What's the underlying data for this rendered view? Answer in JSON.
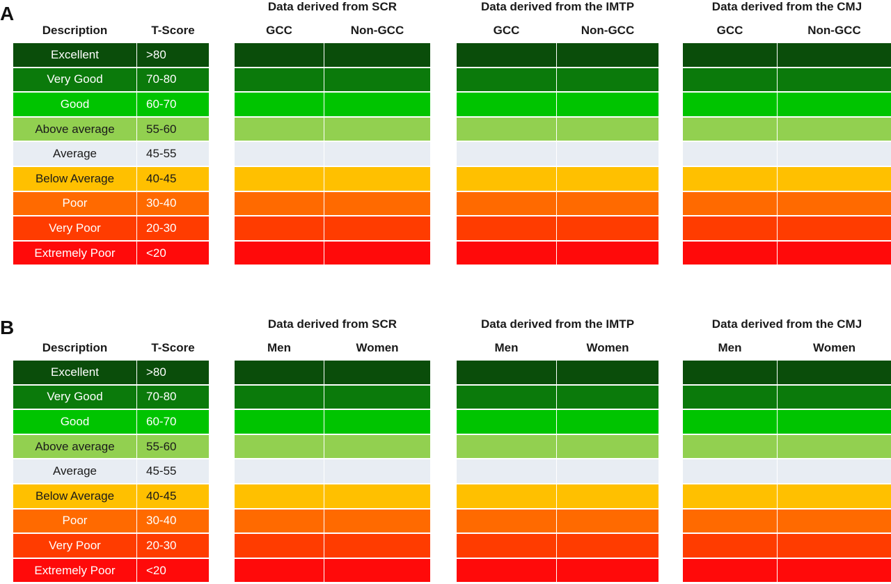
{
  "rating_levels": [
    {
      "description": "Excellent",
      "t_score": ">80",
      "color": "#0a4d0a",
      "text_color": "#ffffff"
    },
    {
      "description": "Very Good",
      "t_score": "70-80",
      "color": "#0b7a0b",
      "text_color": "#ffffff"
    },
    {
      "description": "Good",
      "t_score": "60-70",
      "color": "#00c400",
      "text_color": "#ffffff"
    },
    {
      "description": "Above average",
      "t_score": "55-60",
      "color": "#92d050",
      "text_color": "#1a1a1a"
    },
    {
      "description": "Average",
      "t_score": "45-55",
      "color": "#e8edf3",
      "text_color": "#1a1a1a"
    },
    {
      "description": "Below Average",
      "t_score": "40-45",
      "color": "#ffc000",
      "text_color": "#1a1a1a"
    },
    {
      "description": "Poor",
      "t_score": "30-40",
      "color": "#ff6a00",
      "text_color": "#ffffff"
    },
    {
      "description": "Very Poor",
      "t_score": "20-30",
      "color": "#ff3c00",
      "text_color": "#ffffff"
    },
    {
      "description": "Extremely Poor",
      "t_score": "<20",
      "color": "#ff0a0a",
      "text_color": "#ffffff"
    }
  ],
  "panels": [
    {
      "letter": "A",
      "description_header": "Description",
      "tscore_header": "T-Score",
      "groups": [
        {
          "title": "Data derived from SCR",
          "columns": [
            "GCC",
            "Non-GCC"
          ]
        },
        {
          "title": "Data derived from the IMTP",
          "columns": [
            "GCC",
            "Non-GCC"
          ]
        },
        {
          "title": "Data derived from the CMJ",
          "columns": [
            "GCC",
            "Non-GCC"
          ]
        }
      ]
    },
    {
      "letter": "B",
      "description_header": "Description",
      "tscore_header": "T-Score",
      "groups": [
        {
          "title": "Data derived from SCR",
          "columns": [
            "Men",
            "Women"
          ]
        },
        {
          "title": "Data derived from the IMTP",
          "columns": [
            "Men",
            "Women"
          ]
        },
        {
          "title": "Data derived from the CMJ",
          "columns": [
            "Men",
            "Women"
          ]
        }
      ]
    }
  ]
}
